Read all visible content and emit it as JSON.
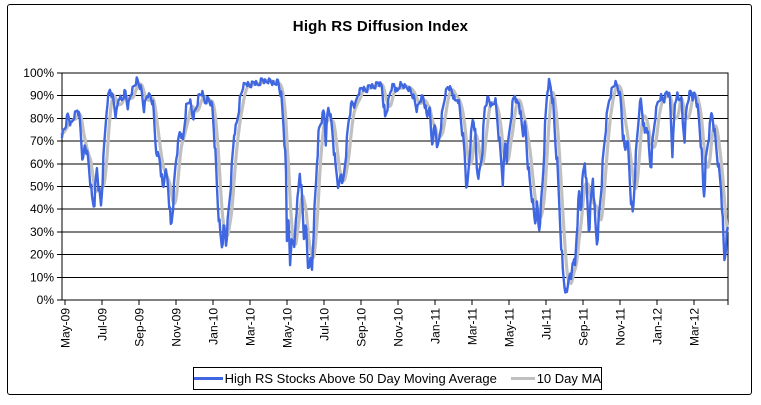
{
  "title": "High RS Diffusion Index",
  "legend": {
    "series1_label": "High RS Stocks Above 50 Day Moving Average",
    "series2_label": "10 Day MA"
  },
  "colors": {
    "series1": "#4067E2",
    "series2": "#C0C0C0",
    "axis": "#000000",
    "grid": "#000000",
    "background": "#FFFFFF"
  },
  "chart_data": {
    "type": "line",
    "title": "High RS Diffusion Index",
    "xlabel": "",
    "ylabel": "",
    "grid": "horizontal",
    "legend_position": "bottom",
    "ylim": [
      0,
      100
    ],
    "y_tick_labels": [
      "0%",
      "10%",
      "20%",
      "30%",
      "40%",
      "50%",
      "60%",
      "70%",
      "80%",
      "90%",
      "100%"
    ],
    "x_tick_labels": [
      "May-09",
      "Jul-09",
      "Sep-09",
      "Nov-09",
      "Jan-10",
      "Mar-10",
      "May-10",
      "Jul-10",
      "Sep-10",
      "Nov-10",
      "Jan-11",
      "Mar-11",
      "May-11",
      "Jul-11",
      "Sep-11",
      "Nov-11",
      "Jan-12",
      "Mar-12"
    ],
    "x_unit": "months since May-2009 (0 to 36, tick every 2 months)",
    "xlim_months": [
      0,
      36
    ],
    "note": "values are percent of High RS stocks above their 50-day moving average; points estimated from plot",
    "series": [
      {
        "name": "High RS Stocks Above 50 Day Moving Average",
        "color": "#4067E2",
        "points": [
          [
            0,
            73
          ],
          [
            0.16,
            76
          ],
          [
            0.32,
            82
          ],
          [
            0.49,
            77
          ],
          [
            0.65,
            81
          ],
          [
            0.86,
            84.5
          ],
          [
            0.97,
            78
          ],
          [
            1.14,
            60
          ],
          [
            1.24,
            69
          ],
          [
            1.41,
            62
          ],
          [
            1.62,
            45
          ],
          [
            1.73,
            41
          ],
          [
            1.89,
            58
          ],
          [
            2.0,
            48
          ],
          [
            2.11,
            41
          ],
          [
            2.27,
            65
          ],
          [
            2.43,
            87
          ],
          [
            2.59,
            93
          ],
          [
            2.76,
            89
          ],
          [
            2.92,
            81
          ],
          [
            3.08,
            90
          ],
          [
            3.24,
            88
          ],
          [
            3.41,
            92
          ],
          [
            3.57,
            85
          ],
          [
            3.73,
            91
          ],
          [
            3.89,
            94
          ],
          [
            4.05,
            97
          ],
          [
            4.27,
            93
          ],
          [
            4.43,
            84
          ],
          [
            4.59,
            90
          ],
          [
            4.76,
            90
          ],
          [
            4.92,
            86
          ],
          [
            5.08,
            66
          ],
          [
            5.3,
            62
          ],
          [
            5.46,
            48
          ],
          [
            5.57,
            58
          ],
          [
            5.73,
            52
          ],
          [
            5.89,
            31
          ],
          [
            6.0,
            42
          ],
          [
            6.16,
            62
          ],
          [
            6.38,
            75
          ],
          [
            6.54,
            70
          ],
          [
            6.7,
            85
          ],
          [
            6.9,
            88
          ],
          [
            7.08,
            80
          ],
          [
            7.24,
            84
          ],
          [
            7.41,
            90
          ],
          [
            7.57,
            91
          ],
          [
            7.73,
            87
          ],
          [
            7.89,
            89
          ],
          [
            8.11,
            86
          ],
          [
            8.22,
            75
          ],
          [
            8.32,
            60
          ],
          [
            8.43,
            42
          ],
          [
            8.54,
            30
          ],
          [
            8.65,
            24
          ],
          [
            8.76,
            33
          ],
          [
            8.86,
            25
          ],
          [
            8.97,
            35
          ],
          [
            9.14,
            53
          ],
          [
            9.3,
            73
          ],
          [
            9.46,
            78
          ],
          [
            9.62,
            88
          ],
          [
            9.78,
            94
          ],
          [
            9.95,
            95.5
          ],
          [
            10.16,
            94
          ],
          [
            10.38,
            96
          ],
          [
            10.59,
            94.5
          ],
          [
            10.81,
            97.5
          ],
          [
            11.03,
            96
          ],
          [
            11.24,
            97
          ],
          [
            11.46,
            95
          ],
          [
            11.68,
            96.5
          ],
          [
            11.84,
            90
          ],
          [
            12.0,
            75
          ],
          [
            12.11,
            55
          ],
          [
            12.16,
            22
          ],
          [
            12.22,
            45
          ],
          [
            12.32,
            12
          ],
          [
            12.43,
            30
          ],
          [
            12.54,
            20
          ],
          [
            12.65,
            38
          ],
          [
            12.76,
            45
          ],
          [
            12.86,
            57
          ],
          [
            12.97,
            44
          ],
          [
            13.08,
            27
          ],
          [
            13.19,
            32
          ],
          [
            13.3,
            14
          ],
          [
            13.41,
            18
          ],
          [
            13.51,
            13
          ],
          [
            13.62,
            35
          ],
          [
            13.73,
            52
          ],
          [
            13.78,
            62
          ],
          [
            13.89,
            75
          ],
          [
            14.05,
            80
          ],
          [
            14.16,
            84
          ],
          [
            14.27,
            70
          ],
          [
            14.38,
            85
          ],
          [
            14.49,
            82
          ],
          [
            14.65,
            72
          ],
          [
            14.76,
            60
          ],
          [
            14.86,
            55
          ],
          [
            14.97,
            48
          ],
          [
            15.08,
            57
          ],
          [
            15.19,
            50
          ],
          [
            15.3,
            60
          ],
          [
            15.41,
            70
          ],
          [
            15.51,
            80
          ],
          [
            15.68,
            87
          ],
          [
            15.84,
            85
          ],
          [
            16.0,
            91
          ],
          [
            16.22,
            94
          ],
          [
            16.43,
            92
          ],
          [
            16.65,
            95
          ],
          [
            16.86,
            93.5
          ],
          [
            17.08,
            96
          ],
          [
            17.3,
            94
          ],
          [
            17.46,
            80
          ],
          [
            17.62,
            86
          ],
          [
            17.78,
            93
          ],
          [
            17.95,
            95
          ],
          [
            18.11,
            91
          ],
          [
            18.27,
            95
          ],
          [
            18.49,
            94
          ],
          [
            18.81,
            93
          ],
          [
            19.03,
            89
          ],
          [
            19.19,
            84
          ],
          [
            19.35,
            88
          ],
          [
            19.51,
            90
          ],
          [
            19.62,
            86
          ],
          [
            19.73,
            80
          ],
          [
            19.84,
            86
          ],
          [
            20.0,
            69
          ],
          [
            20.16,
            77
          ],
          [
            20.32,
            66
          ],
          [
            20.54,
            81
          ],
          [
            20.7,
            90
          ],
          [
            20.86,
            94
          ],
          [
            21.08,
            92
          ],
          [
            21.24,
            87
          ],
          [
            21.41,
            89.5
          ],
          [
            21.62,
            76
          ],
          [
            21.78,
            64
          ],
          [
            21.89,
            47
          ],
          [
            22.05,
            67
          ],
          [
            22.22,
            81
          ],
          [
            22.32,
            75
          ],
          [
            22.43,
            57
          ],
          [
            22.54,
            54
          ],
          [
            22.7,
            64
          ],
          [
            22.86,
            85
          ],
          [
            23.03,
            89
          ],
          [
            23.24,
            85
          ],
          [
            23.41,
            88
          ],
          [
            23.57,
            76
          ],
          [
            23.78,
            57
          ],
          [
            23.84,
            51
          ],
          [
            23.95,
            69
          ],
          [
            24.05,
            62
          ],
          [
            24.16,
            72
          ],
          [
            24.27,
            81
          ],
          [
            24.38,
            88
          ],
          [
            24.49,
            91
          ],
          [
            24.59,
            86
          ],
          [
            24.7,
            88
          ],
          [
            24.81,
            80
          ],
          [
            24.92,
            73
          ],
          [
            25.03,
            78
          ],
          [
            25.14,
            65
          ],
          [
            25.24,
            55
          ],
          [
            25.35,
            48
          ],
          [
            25.46,
            42
          ],
          [
            25.57,
            34
          ],
          [
            25.68,
            42
          ],
          [
            25.78,
            30
          ],
          [
            25.89,
            40
          ],
          [
            26.0,
            55
          ],
          [
            26.11,
            75
          ],
          [
            26.22,
            91
          ],
          [
            26.32,
            96
          ],
          [
            26.43,
            93
          ],
          [
            26.54,
            86
          ],
          [
            26.65,
            72
          ],
          [
            26.76,
            60
          ],
          [
            26.86,
            45
          ],
          [
            26.97,
            28
          ],
          [
            27.08,
            12
          ],
          [
            27.19,
            5
          ],
          [
            27.3,
            3
          ],
          [
            27.41,
            13
          ],
          [
            27.51,
            8
          ],
          [
            27.62,
            20
          ],
          [
            27.73,
            14
          ],
          [
            27.84,
            33
          ],
          [
            27.95,
            47
          ],
          [
            28.05,
            40
          ],
          [
            28.16,
            55
          ],
          [
            28.27,
            62
          ],
          [
            28.38,
            45
          ],
          [
            28.49,
            30
          ],
          [
            28.59,
            43
          ],
          [
            28.7,
            55
          ],
          [
            28.81,
            35
          ],
          [
            28.92,
            25
          ],
          [
            29.03,
            36
          ],
          [
            29.14,
            48
          ],
          [
            29.24,
            60
          ],
          [
            29.35,
            72
          ],
          [
            29.46,
            81
          ],
          [
            29.57,
            88
          ],
          [
            29.73,
            93
          ],
          [
            29.89,
            96
          ],
          [
            30.05,
            94
          ],
          [
            30.21,
            88
          ],
          [
            30.32,
            74
          ],
          [
            30.43,
            65
          ],
          [
            30.54,
            72
          ],
          [
            30.65,
            60
          ],
          [
            30.75,
            45
          ],
          [
            30.86,
            37
          ],
          [
            30.97,
            56
          ],
          [
            31.08,
            70
          ],
          [
            31.19,
            83
          ],
          [
            31.29,
            88
          ],
          [
            31.4,
            80
          ],
          [
            31.51,
            72
          ],
          [
            31.62,
            78
          ],
          [
            31.73,
            65
          ],
          [
            31.83,
            58
          ],
          [
            31.94,
            70
          ],
          [
            32.05,
            80
          ],
          [
            32.21,
            87
          ],
          [
            32.37,
            90
          ],
          [
            32.53,
            88
          ],
          [
            32.69,
            92
          ],
          [
            32.85,
            90
          ],
          [
            33.01,
            64
          ],
          [
            33.12,
            86
          ],
          [
            33.23,
            91
          ],
          [
            33.34,
            88
          ],
          [
            33.45,
            90
          ],
          [
            33.55,
            78
          ],
          [
            33.66,
            71
          ],
          [
            33.77,
            85
          ],
          [
            33.88,
            90
          ],
          [
            33.99,
            92
          ],
          [
            34.1,
            89
          ],
          [
            34.2,
            91
          ],
          [
            34.31,
            87
          ],
          [
            34.42,
            80
          ],
          [
            34.53,
            70
          ],
          [
            34.63,
            55
          ],
          [
            34.69,
            44
          ],
          [
            34.8,
            60
          ],
          [
            34.9,
            68
          ],
          [
            35.01,
            75
          ],
          [
            35.12,
            83
          ],
          [
            35.22,
            78
          ],
          [
            35.33,
            70
          ],
          [
            35.44,
            62
          ],
          [
            35.55,
            55
          ],
          [
            35.65,
            48
          ],
          [
            35.76,
            25
          ],
          [
            35.81,
            17
          ],
          [
            35.92,
            28
          ],
          [
            35.98,
            31
          ]
        ]
      },
      {
        "name": "10 Day MA",
        "color": "#C0C0C0",
        "derived": "10-day trailing moving average of series 1"
      }
    ]
  }
}
